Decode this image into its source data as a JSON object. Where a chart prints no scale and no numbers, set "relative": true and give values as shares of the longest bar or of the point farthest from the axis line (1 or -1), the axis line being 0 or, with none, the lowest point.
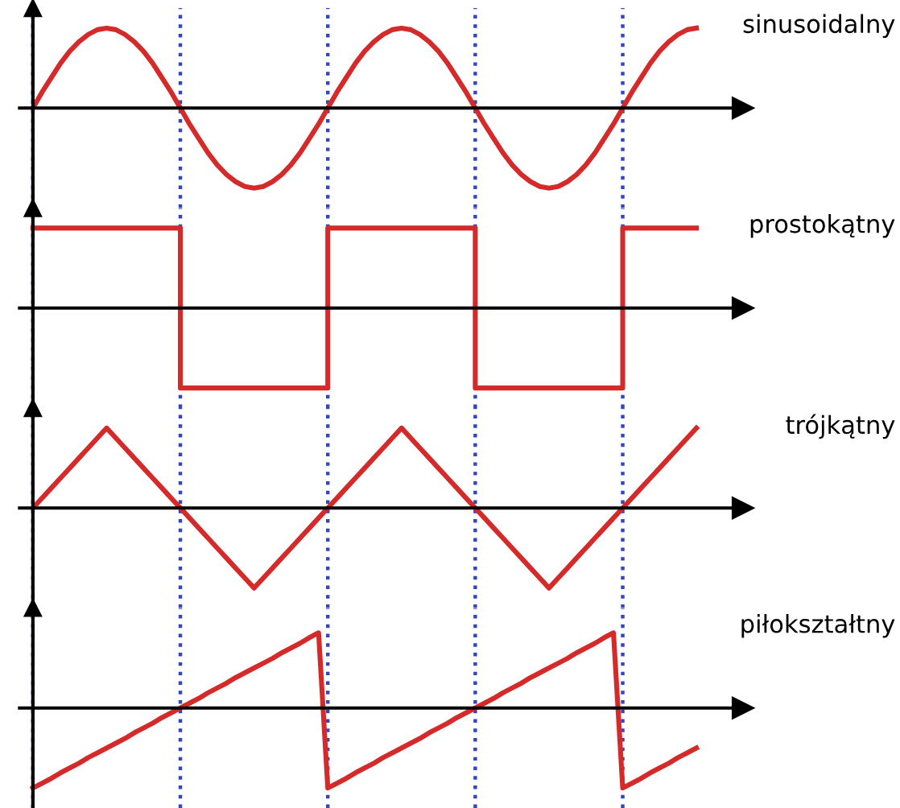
{
  "chart_data": [
    {
      "type": "line",
      "relative": true,
      "grid": "x",
      "categories": [
        null,
        null,
        null,
        null,
        null,
        null,
        null,
        null,
        null,
        null,
        null,
        null,
        null,
        null,
        null,
        null,
        null,
        null,
        null,
        null,
        null,
        null,
        null,
        null,
        null,
        null,
        null,
        null,
        null,
        null,
        null,
        null,
        null,
        null,
        null,
        null,
        null,
        null,
        null,
        null,
        null,
        null,
        null,
        null,
        null,
        null,
        null,
        null,
        null,
        null,
        null,
        null,
        null,
        null,
        null,
        null,
        null,
        null,
        null,
        null,
        null,
        null,
        null,
        null,
        null,
        null,
        null,
        null,
        null,
        null,
        null,
        null,
        null
      ],
      "series": [
        {
          "name": "sinusoidalny",
          "color": "#d42a2a",
          "values": [
            0,
            0.2,
            0.38,
            0.56,
            0.71,
            0.83,
            0.92,
            0.98,
            1,
            0.98,
            0.92,
            0.83,
            0.71,
            0.56,
            0.38,
            0.2,
            0,
            -0.2,
            -0.38,
            -0.56,
            -0.71,
            -0.83,
            -0.92,
            -0.98,
            -1,
            -0.98,
            -0.92,
            -0.83,
            -0.71,
            -0.56,
            -0.38,
            -0.2,
            0,
            0.2,
            0.38,
            0.56,
            0.71,
            0.83,
            0.92,
            0.98,
            1,
            0.98,
            0.92,
            0.83,
            0.71,
            0.56,
            0.38,
            0.2,
            0,
            -0.2,
            -0.38,
            -0.56,
            -0.71,
            -0.83,
            -0.92,
            -0.98,
            -1,
            -0.98,
            -0.92,
            -0.83,
            -0.71,
            -0.56,
            -0.38,
            -0.2,
            0,
            0.2,
            0.38,
            0.56,
            0.71,
            0.83,
            0.92,
            0.98,
            1
          ]
        }
      ]
    },
    {
      "type": "step",
      "relative": true,
      "grid": "x",
      "categories": [
        null,
        null,
        null,
        null,
        null,
        null,
        null,
        null,
        null,
        null,
        null,
        null,
        null,
        null,
        null,
        null,
        null,
        null,
        null,
        null,
        null,
        null,
        null,
        null,
        null,
        null,
        null,
        null,
        null,
        null,
        null,
        null,
        null,
        null,
        null,
        null,
        null,
        null,
        null,
        null,
        null,
        null,
        null,
        null,
        null,
        null,
        null,
        null,
        null,
        null,
        null,
        null,
        null,
        null,
        null,
        null,
        null,
        null,
        null,
        null,
        null,
        null,
        null,
        null,
        null,
        null,
        null,
        null,
        null,
        null,
        null,
        null,
        null
      ],
      "series": [
        {
          "name": "prostokątny",
          "color": "#d42a2a",
          "values": [
            1,
            1,
            1,
            1,
            1,
            1,
            1,
            1,
            1,
            1,
            1,
            1,
            1,
            1,
            1,
            1,
            -1,
            -1,
            -1,
            -1,
            -1,
            -1,
            -1,
            -1,
            -1,
            -1,
            -1,
            -1,
            -1,
            -1,
            -1,
            -1,
            1,
            1,
            1,
            1,
            1,
            1,
            1,
            1,
            1,
            1,
            1,
            1,
            1,
            1,
            1,
            1,
            -1,
            -1,
            -1,
            -1,
            -1,
            -1,
            -1,
            -1,
            -1,
            -1,
            -1,
            -1,
            -1,
            -1,
            -1,
            -1,
            1,
            1,
            1,
            1,
            1,
            1,
            1,
            1,
            1
          ]
        }
      ]
    },
    {
      "type": "line",
      "relative": true,
      "grid": "x",
      "categories": [
        null,
        null,
        null,
        null,
        null,
        null,
        null,
        null,
        null,
        null,
        null,
        null,
        null,
        null,
        null,
        null,
        null,
        null,
        null,
        null,
        null,
        null,
        null,
        null,
        null,
        null,
        null,
        null,
        null,
        null,
        null,
        null,
        null,
        null,
        null,
        null,
        null,
        null,
        null,
        null,
        null,
        null,
        null,
        null,
        null,
        null,
        null,
        null,
        null,
        null,
        null,
        null,
        null,
        null,
        null,
        null,
        null,
        null,
        null,
        null,
        null,
        null,
        null,
        null,
        null,
        null,
        null,
        null,
        null,
        null,
        null,
        null,
        null
      ],
      "series": [
        {
          "name": "trójkątny",
          "color": "#d42a2a",
          "values": [
            0,
            0.125,
            0.25,
            0.375,
            0.5,
            0.625,
            0.75,
            0.875,
            1,
            0.875,
            0.75,
            0.625,
            0.5,
            0.375,
            0.25,
            0.125,
            0,
            -0.125,
            -0.25,
            -0.375,
            -0.5,
            -0.625,
            -0.75,
            -0.875,
            -1,
            -0.875,
            -0.75,
            -0.625,
            -0.5,
            -0.375,
            -0.25,
            -0.125,
            0,
            0.125,
            0.25,
            0.375,
            0.5,
            0.625,
            0.75,
            0.875,
            1,
            0.875,
            0.75,
            0.625,
            0.5,
            0.375,
            0.25,
            0.125,
            0,
            -0.125,
            -0.25,
            -0.375,
            -0.5,
            -0.625,
            -0.75,
            -0.875,
            -1,
            -0.875,
            -0.75,
            -0.625,
            -0.5,
            -0.375,
            -0.25,
            -0.125,
            0,
            0.125,
            0.25,
            0.375,
            0.5,
            0.625,
            0.75,
            0.875,
            1
          ]
        }
      ]
    },
    {
      "type": "line",
      "relative": true,
      "grid": "x",
      "categories": [
        null,
        null,
        null,
        null,
        null,
        null,
        null,
        null,
        null,
        null,
        null,
        null,
        null,
        null,
        null,
        null,
        null,
        null,
        null,
        null,
        null,
        null,
        null,
        null,
        null,
        null,
        null,
        null,
        null,
        null,
        null,
        null,
        null,
        null,
        null,
        null,
        null,
        null,
        null,
        null,
        null,
        null,
        null,
        null,
        null,
        null,
        null,
        null,
        null,
        null,
        null,
        null,
        null,
        null,
        null,
        null,
        null,
        null,
        null,
        null,
        null,
        null,
        null,
        null,
        null,
        null,
        null,
        null,
        null,
        null,
        null,
        null,
        null
      ],
      "series": [
        {
          "name": "piłokształtny",
          "color": "#d42a2a",
          "values": [
            -1,
            -0.94,
            -0.88,
            -0.81,
            -0.75,
            -0.69,
            -0.62,
            -0.56,
            -0.5,
            -0.44,
            -0.38,
            -0.31,
            -0.25,
            -0.19,
            -0.12,
            -0.06,
            0,
            0.06,
            0.12,
            0.19,
            0.25,
            0.31,
            0.38,
            0.44,
            0.5,
            0.56,
            0.62,
            0.69,
            0.75,
            0.81,
            0.88,
            0.94,
            -1,
            -0.94,
            -0.88,
            -0.81,
            -0.75,
            -0.69,
            -0.62,
            -0.56,
            -0.5,
            -0.44,
            -0.38,
            -0.31,
            -0.25,
            -0.19,
            -0.12,
            -0.06,
            0,
            0.06,
            0.12,
            0.19,
            0.25,
            0.31,
            0.38,
            0.44,
            0.5,
            0.56,
            0.62,
            0.69,
            0.75,
            0.81,
            0.88,
            0.94,
            -1,
            -0.94,
            -0.88,
            -0.81,
            -0.75,
            -0.69,
            -0.62,
            -0.56,
            -0.5
          ]
        }
      ]
    }
  ]
}
